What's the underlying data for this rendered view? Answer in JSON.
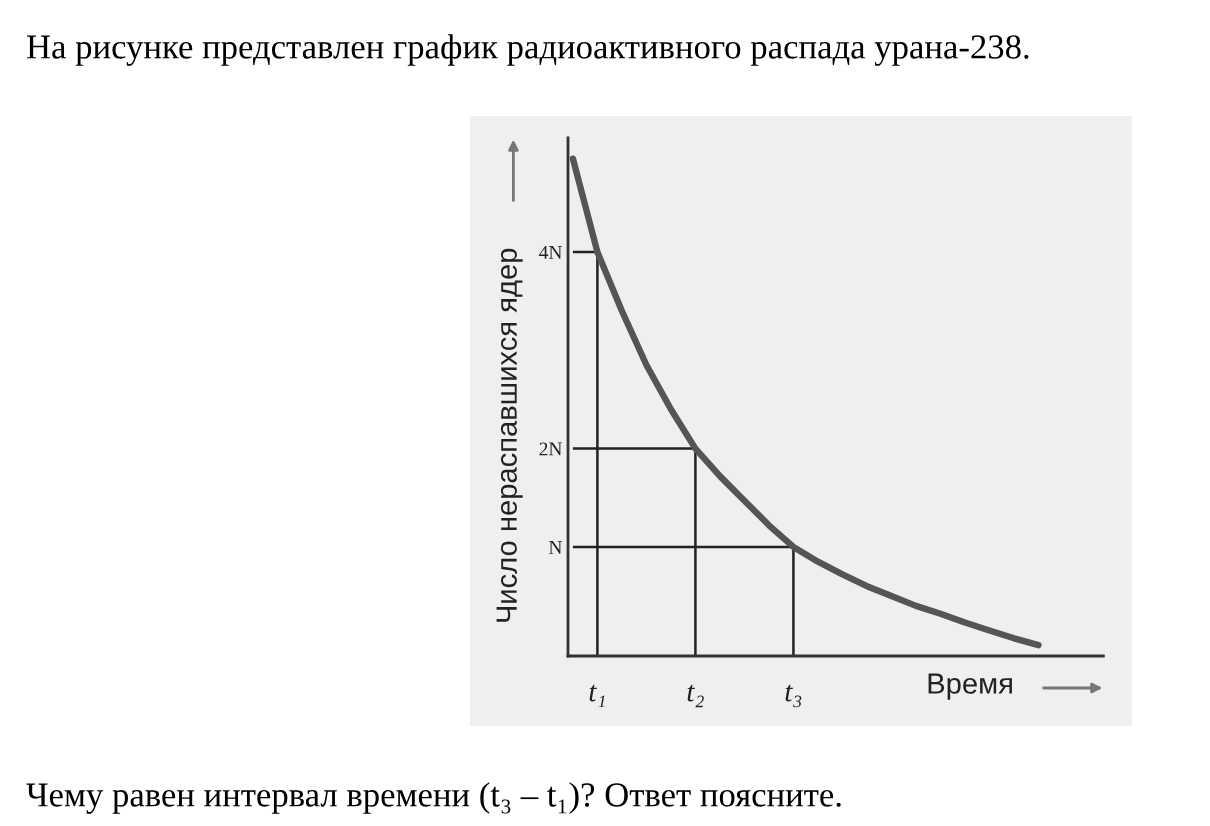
{
  "chart_data": {
    "type": "line",
    "title": "На рисунке представлен график радиоактивного распада урана-238.",
    "xlabel": "Время",
    "ylabel": "Число нераспавшихся ядер",
    "annotations": [
      "Чему равен интервал времени (t₃ – t₁)? Ответ поясните."
    ],
    "categories": [
      null,
      "t₁",
      null,
      null,
      null,
      "t₂",
      null,
      null,
      null,
      "t₃",
      null,
      null,
      null,
      null,
      null,
      null,
      null,
      null,
      null,
      null
    ],
    "series": [
      {
        "color": "#555555",
        "values": [
          4.95,
          4.0,
          3.4,
          2.85,
          2.4,
          2.0,
          1.72,
          1.47,
          1.22,
          1.0,
          0.85,
          0.72,
          0.6,
          0.5,
          0.4,
          0.32,
          0.23,
          0.15,
          0.07,
          0.0
        ]
      },
      {
        "color": "#222222",
        "values": [
          4,
          4,
          null,
          null,
          null,
          null,
          null,
          null,
          null,
          null,
          null,
          null,
          null,
          null,
          null,
          null,
          null,
          null,
          null,
          null
        ]
      },
      {
        "color": "#222222",
        "values": [
          2,
          2,
          2,
          2,
          2,
          2,
          null,
          null,
          null,
          null,
          null,
          null,
          null,
          null,
          null,
          null,
          null,
          null,
          null,
          null
        ]
      },
      {
        "color": "#222222",
        "values": [
          1,
          1,
          1,
          1,
          1,
          1,
          1,
          1,
          1,
          1,
          null,
          null,
          null,
          null,
          null,
          null,
          null,
          null,
          null,
          null
        ]
      }
    ],
    "ylim": [
      -0.11,
      5.16
    ],
    "yticks": [
      {
        "value": 1,
        "label": "N"
      },
      {
        "value": 2,
        "label": "2N"
      },
      {
        "value": 4,
        "label": "4N"
      }
    ],
    "ref_lines": [
      {
        "axis": "x",
        "value": "t₁",
        "color": "#222222"
      },
      {
        "axis": "x",
        "value": "t₂",
        "color": "#222222"
      },
      {
        "axis": "x",
        "value": "t₃",
        "color": "#222222"
      }
    ]
  }
}
